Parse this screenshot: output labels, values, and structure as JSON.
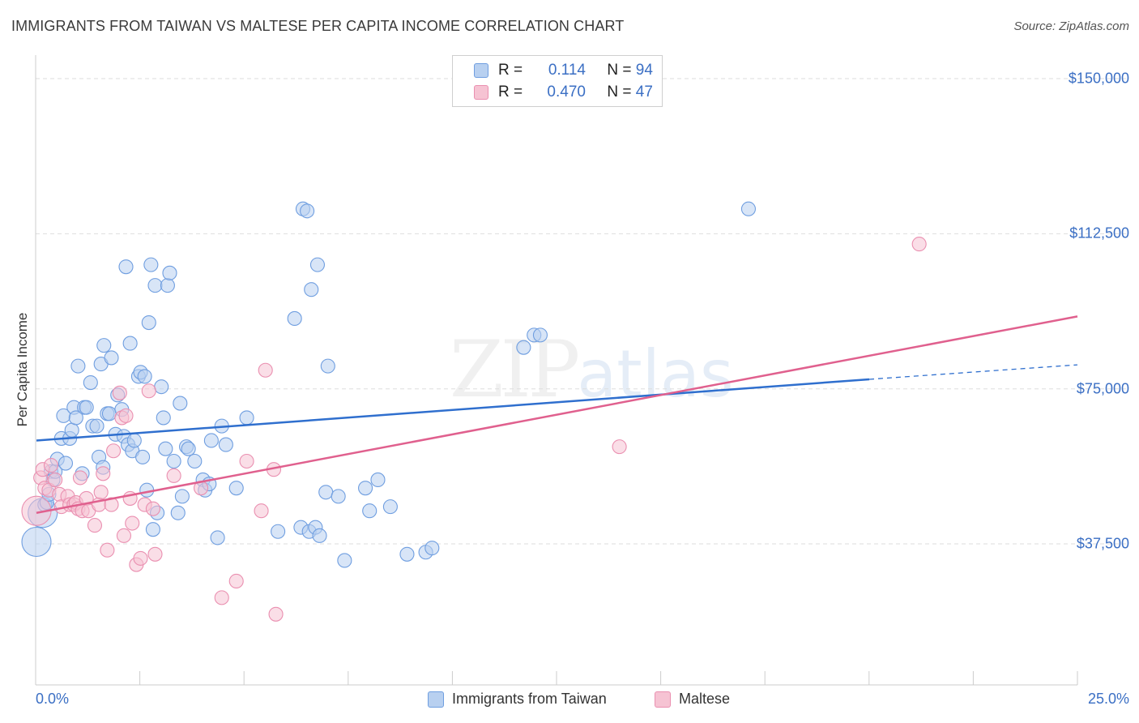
{
  "title": "IMMIGRANTS FROM TAIWAN VS MALTESE PER CAPITA INCOME CORRELATION CHART",
  "source": "Source: ZipAtlas.com",
  "watermark": {
    "zip": "ZIP",
    "atlas": "atlas"
  },
  "legend": {
    "taiwan": {
      "r_label": "R =",
      "r_value": "0.114",
      "n_label": "N =",
      "n_value": "94"
    },
    "maltese": {
      "r_label": "R =",
      "r_value": "0.470",
      "n_label": "N =",
      "n_value": "47"
    }
  },
  "colors": {
    "taiwan_fill": "#b8d0f0",
    "taiwan_stroke": "#6f9ee0",
    "taiwan_line": "#2f6fce",
    "maltese_fill": "#f6c3d3",
    "maltese_stroke": "#ea8fb0",
    "maltese_line": "#e0608e",
    "tick_text": "#3b6fc4",
    "grid": "#dddddd"
  },
  "chart_data": {
    "type": "scatter",
    "title": "IMMIGRANTS FROM TAIWAN VS MALTESE PER CAPITA INCOME CORRELATION CHART",
    "xlabel": "",
    "ylabel": "Per Capita Income",
    "xlim": [
      0,
      25
    ],
    "ylim": [
      0,
      155000
    ],
    "x_tick_labels": [
      "0.0%",
      "25.0%"
    ],
    "y_ticks": [
      {
        "value": 37500,
        "label": "$37,500"
      },
      {
        "value": 75000,
        "label": "$75,000"
      },
      {
        "value": 112500,
        "label": "$112,500"
      },
      {
        "value": 150000,
        "label": "$150,000"
      }
    ],
    "series": [
      {
        "name": "Immigrants from Taiwan",
        "trend": {
          "x": [
            0,
            20
          ],
          "y": [
            62500,
            77300
          ],
          "dashed_to": [
            25,
            80800
          ]
        },
        "points": [
          [
            0.0,
            38000,
            3
          ],
          [
            0.15,
            45000,
            2
          ],
          [
            0.2,
            47000,
            1
          ],
          [
            0.25,
            47500,
            1
          ],
          [
            0.3,
            49500,
            1
          ],
          [
            0.35,
            55000,
            1
          ],
          [
            0.4,
            53000,
            1
          ],
          [
            0.45,
            55000,
            1
          ],
          [
            0.5,
            58000,
            1
          ],
          [
            0.6,
            63000,
            1
          ],
          [
            0.65,
            68500,
            1
          ],
          [
            0.7,
            57000,
            1
          ],
          [
            0.8,
            63000,
            1
          ],
          [
            0.85,
            65000,
            1
          ],
          [
            0.9,
            70500,
            1
          ],
          [
            0.95,
            68000,
            1
          ],
          [
            1.0,
            80500,
            1
          ],
          [
            1.1,
            54500,
            1
          ],
          [
            1.15,
            70500,
            1
          ],
          [
            1.2,
            70500,
            1
          ],
          [
            1.3,
            76500,
            1
          ],
          [
            1.35,
            66000,
            1
          ],
          [
            1.45,
            66000,
            1
          ],
          [
            1.5,
            58500,
            1
          ],
          [
            1.55,
            81000,
            1
          ],
          [
            1.6,
            56000,
            1
          ],
          [
            1.62,
            85500,
            1
          ],
          [
            1.7,
            69000,
            1
          ],
          [
            1.75,
            69000,
            1
          ],
          [
            1.8,
            82500,
            1
          ],
          [
            1.9,
            64000,
            1
          ],
          [
            1.95,
            73500,
            1
          ],
          [
            2.05,
            70000,
            1
          ],
          [
            2.1,
            63500,
            1
          ],
          [
            2.15,
            104500,
            1
          ],
          [
            2.2,
            61500,
            1
          ],
          [
            2.25,
            86000,
            1
          ],
          [
            2.3,
            60000,
            1
          ],
          [
            2.35,
            62500,
            1
          ],
          [
            2.45,
            78000,
            1
          ],
          [
            2.5,
            79000,
            1
          ],
          [
            2.55,
            58500,
            1
          ],
          [
            2.6,
            78000,
            1
          ],
          [
            2.65,
            50500,
            1
          ],
          [
            2.7,
            91000,
            1
          ],
          [
            2.75,
            105000,
            1
          ],
          [
            2.8,
            41000,
            1
          ],
          [
            2.85,
            100000,
            1
          ],
          [
            2.9,
            45000,
            1
          ],
          [
            3.0,
            75500,
            1
          ],
          [
            3.05,
            68000,
            1
          ],
          [
            3.1,
            60500,
            1
          ],
          [
            3.15,
            100000,
            1
          ],
          [
            3.2,
            103000,
            1
          ],
          [
            3.3,
            57500,
            1
          ],
          [
            3.4,
            45000,
            1
          ],
          [
            3.45,
            71500,
            1
          ],
          [
            3.5,
            49000,
            1
          ],
          [
            3.6,
            61000,
            1
          ],
          [
            3.65,
            60500,
            1
          ],
          [
            3.8,
            57500,
            1
          ],
          [
            4.0,
            53000,
            1
          ],
          [
            4.05,
            50500,
            1
          ],
          [
            4.15,
            52000,
            1
          ],
          [
            4.2,
            62500,
            1
          ],
          [
            4.35,
            39000,
            1
          ],
          [
            4.45,
            66000,
            1
          ],
          [
            4.55,
            61500,
            1
          ],
          [
            4.8,
            51000,
            1
          ],
          [
            5.05,
            68000,
            1
          ],
          [
            5.8,
            40500,
            1
          ],
          [
            6.2,
            92000,
            1
          ],
          [
            6.35,
            41500,
            1
          ],
          [
            6.4,
            118500,
            1
          ],
          [
            6.5,
            118000,
            1
          ],
          [
            6.55,
            40500,
            1
          ],
          [
            6.6,
            99000,
            1
          ],
          [
            6.7,
            41500,
            1
          ],
          [
            6.75,
            105000,
            1
          ],
          [
            6.8,
            39500,
            1
          ],
          [
            6.95,
            50000,
            1
          ],
          [
            7.0,
            80500,
            1
          ],
          [
            7.25,
            49000,
            1
          ],
          [
            7.4,
            33500,
            1
          ],
          [
            7.9,
            51000,
            1
          ],
          [
            8.0,
            45500,
            1
          ],
          [
            8.2,
            53000,
            1
          ],
          [
            8.5,
            46500,
            1
          ],
          [
            8.9,
            35000,
            1
          ],
          [
            9.35,
            35500,
            1
          ],
          [
            9.5,
            36500,
            1
          ],
          [
            11.7,
            85000,
            1
          ],
          [
            11.95,
            88000,
            1
          ],
          [
            12.1,
            88000,
            1
          ],
          [
            17.1,
            118500,
            1
          ]
        ]
      },
      {
        "name": "Maltese",
        "trend": {
          "x": [
            0,
            25
          ],
          "y": [
            45000,
            92500
          ]
        },
        "points": [
          [
            0.0,
            45500,
            3
          ],
          [
            0.1,
            53500,
            1
          ],
          [
            0.15,
            55500,
            1
          ],
          [
            0.2,
            51000,
            1
          ],
          [
            0.3,
            50500,
            1
          ],
          [
            0.35,
            56500,
            1
          ],
          [
            0.45,
            53000,
            1
          ],
          [
            0.55,
            49500,
            1
          ],
          [
            0.6,
            46500,
            1
          ],
          [
            0.75,
            49000,
            1
          ],
          [
            0.8,
            47000,
            1
          ],
          [
            0.9,
            47000,
            1
          ],
          [
            0.95,
            47500,
            1
          ],
          [
            1.0,
            46000,
            1
          ],
          [
            1.05,
            53500,
            1
          ],
          [
            1.1,
            45500,
            1
          ],
          [
            1.2,
            48500,
            1
          ],
          [
            1.25,
            45500,
            1
          ],
          [
            1.4,
            42000,
            1
          ],
          [
            1.5,
            47000,
            1
          ],
          [
            1.55,
            50000,
            1
          ],
          [
            1.6,
            54500,
            1
          ],
          [
            1.7,
            36000,
            1
          ],
          [
            1.8,
            47000,
            1
          ],
          [
            1.85,
            60000,
            1
          ],
          [
            2.0,
            74000,
            1
          ],
          [
            2.05,
            68000,
            1
          ],
          [
            2.1,
            39500,
            1
          ],
          [
            2.15,
            68500,
            1
          ],
          [
            2.25,
            48500,
            1
          ],
          [
            2.3,
            42500,
            1
          ],
          [
            2.4,
            32500,
            1
          ],
          [
            2.5,
            34000,
            1
          ],
          [
            2.6,
            47000,
            1
          ],
          [
            2.7,
            74500,
            1
          ],
          [
            2.8,
            46000,
            1
          ],
          [
            2.85,
            35000,
            1
          ],
          [
            3.3,
            54000,
            1
          ],
          [
            3.95,
            51000,
            1
          ],
          [
            4.45,
            24500,
            1
          ],
          [
            4.8,
            28500,
            1
          ],
          [
            5.05,
            57500,
            1
          ],
          [
            5.4,
            45500,
            1
          ],
          [
            5.5,
            79500,
            1
          ],
          [
            5.7,
            55500,
            1
          ],
          [
            5.75,
            20500,
            1
          ],
          [
            14.0,
            61000,
            1
          ],
          [
            21.2,
            110000,
            1
          ]
        ]
      }
    ]
  }
}
